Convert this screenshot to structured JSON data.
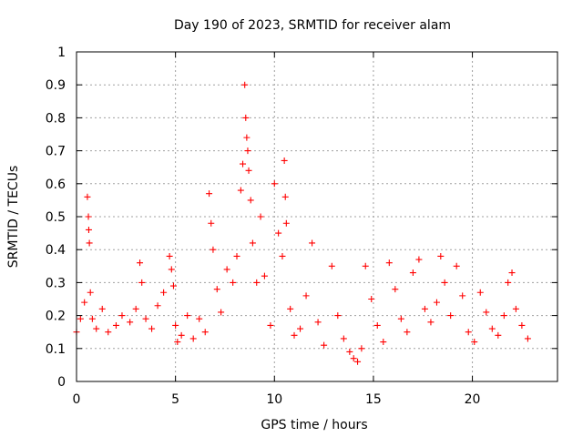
{
  "chart_data": {
    "type": "scatter",
    "title": "Day 190 of 2023, SRMTID for receiver alam",
    "xlabel": "GPS time / hours",
    "ylabel": "SRMTID / TECUs",
    "xlim": [
      0,
      24.3
    ],
    "ylim": [
      0,
      1
    ],
    "xticks": [
      "0",
      "5",
      "10",
      "15",
      "20"
    ],
    "yticks": [
      "0",
      "0.1",
      "0.2",
      "0.3",
      "0.4",
      "0.5",
      "0.6",
      "0.7",
      "0.8",
      "0.9",
      "1"
    ],
    "grid": true,
    "marker": "+",
    "color": "#ff0000",
    "series": [
      {
        "name": "SRMTID",
        "x": [
          0.0,
          0.2,
          0.4,
          0.55,
          0.6,
          0.62,
          0.65,
          0.7,
          0.8,
          1.0,
          1.3,
          1.6,
          2.0,
          2.3,
          2.7,
          3.0,
          3.2,
          3.3,
          3.5,
          3.8,
          4.1,
          4.4,
          4.7,
          4.8,
          4.9,
          5.0,
          5.1,
          5.3,
          5.6,
          5.9,
          6.2,
          6.5,
          6.7,
          6.8,
          6.9,
          7.1,
          7.3,
          7.6,
          7.9,
          8.1,
          8.3,
          8.4,
          8.5,
          8.55,
          8.6,
          8.65,
          8.7,
          8.8,
          8.9,
          9.1,
          9.3,
          9.5,
          9.8,
          10.0,
          10.2,
          10.4,
          10.5,
          10.55,
          10.6,
          10.8,
          11.0,
          11.3,
          11.6,
          11.9,
          12.2,
          12.5,
          12.9,
          13.2,
          13.5,
          13.8,
          14.0,
          14.2,
          14.4,
          14.6,
          14.9,
          15.2,
          15.5,
          15.8,
          16.1,
          16.4,
          16.7,
          17.0,
          17.3,
          17.6,
          17.9,
          18.2,
          18.4,
          18.6,
          18.9,
          19.2,
          19.5,
          19.8,
          20.1,
          20.4,
          20.7,
          21.0,
          21.3,
          21.6,
          21.8,
          22.0,
          22.2,
          22.5,
          22.8
        ],
        "y": [
          0.15,
          0.19,
          0.24,
          0.56,
          0.5,
          0.46,
          0.42,
          0.27,
          0.19,
          0.16,
          0.22,
          0.15,
          0.17,
          0.2,
          0.18,
          0.22,
          0.36,
          0.3,
          0.19,
          0.16,
          0.23,
          0.27,
          0.38,
          0.34,
          0.29,
          0.17,
          0.12,
          0.14,
          0.2,
          0.13,
          0.19,
          0.15,
          0.57,
          0.48,
          0.4,
          0.28,
          0.21,
          0.34,
          0.3,
          0.38,
          0.58,
          0.66,
          0.9,
          0.8,
          0.74,
          0.7,
          0.64,
          0.55,
          0.42,
          0.3,
          0.5,
          0.32,
          0.17,
          0.6,
          0.45,
          0.38,
          0.67,
          0.56,
          0.48,
          0.22,
          0.14,
          0.16,
          0.26,
          0.42,
          0.18,
          0.11,
          0.35,
          0.2,
          0.13,
          0.09,
          0.07,
          0.06,
          0.1,
          0.35,
          0.25,
          0.17,
          0.12,
          0.36,
          0.28,
          0.19,
          0.15,
          0.33,
          0.37,
          0.22,
          0.18,
          0.24,
          0.38,
          0.3,
          0.2,
          0.35,
          0.26,
          0.15,
          0.12,
          0.27,
          0.21,
          0.16,
          0.14,
          0.2,
          0.3,
          0.33,
          0.22,
          0.17,
          0.13
        ]
      }
    ]
  }
}
